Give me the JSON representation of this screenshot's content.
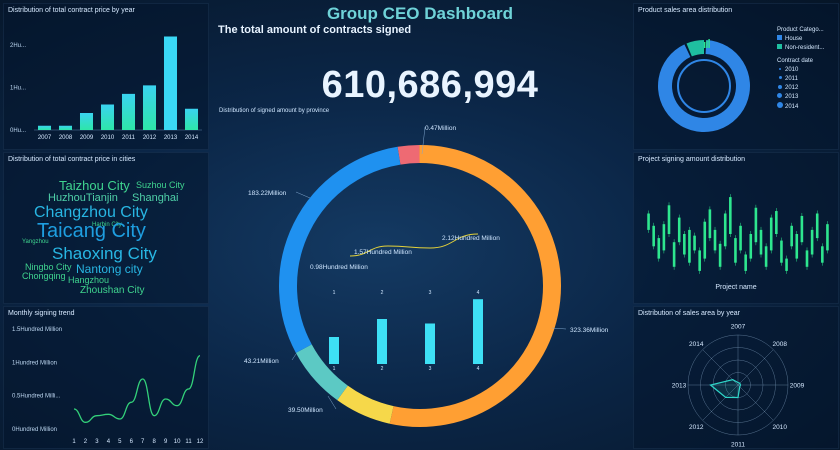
{
  "header": {
    "title": "Group CEO Dashboard",
    "subtitle": "The total amount of contracts signed",
    "total": "610,686,994"
  },
  "panels": {
    "by_year": "Distribution of total contract price by year",
    "cities": "Distribution of total contract price in cities",
    "monthly": "Monthly signing trend",
    "province": "Distribution of signed amount by province",
    "area": "Product sales area distribution",
    "project": "Project signing amount distribution",
    "sales_year": "Distribution of sales area by year"
  },
  "word_cloud": [
    {
      "text": "Taizhou City",
      "color": "#3fd48f"
    },
    {
      "text": "Suzhou City",
      "color": "#3fd48f"
    },
    {
      "text": "HuzhouTianjin",
      "color": "#4fd0a8"
    },
    {
      "text": "Shanghai",
      "color": "#4fd0a8"
    },
    {
      "text": "Changzhou City",
      "color": "#28b6e3"
    },
    {
      "text": "Harbin City",
      "color": "#3fd48f"
    },
    {
      "text": "Taicang City",
      "color": "#1e9ee0"
    },
    {
      "text": "Yangzhou",
      "color": "#3fd48f"
    },
    {
      "text": "Shaoxing City",
      "color": "#28b6e3"
    },
    {
      "text": "Ningbo City",
      "color": "#3fd48f"
    },
    {
      "text": "Chongqing",
      "color": "#3fd48f"
    },
    {
      "text": "Nantong city",
      "color": "#28b6e3"
    },
    {
      "text": "Hangzhou",
      "color": "#3fd48f"
    },
    {
      "text": "Zhoushan City",
      "color": "#3fd48f"
    }
  ],
  "legend": {
    "category_title": "Product Catego...",
    "categories": [
      {
        "name": "House",
        "color": "#2f86e6"
      },
      {
        "name": "Non-resident...",
        "color": "#1fbfa0"
      }
    ],
    "date_title": "Contract date",
    "dates": [
      "2010",
      "2011",
      "2012",
      "2013",
      "2014"
    ]
  },
  "chart_data": [
    {
      "id": "by_year",
      "type": "bar",
      "title": "Distribution of total contract price by year",
      "categories": [
        "2007",
        "2008",
        "2009",
        "2010",
        "2011",
        "2012",
        "2013",
        "2014"
      ],
      "values": [
        0.1,
        0.1,
        0.4,
        0.6,
        0.85,
        1.05,
        2.2,
        0.5
      ],
      "y_ticks": [
        "2Hu...",
        "1Hu...",
        "0Hu..."
      ],
      "ylim": [
        0,
        2.4
      ]
    },
    {
      "id": "monthly",
      "type": "line",
      "title": "Monthly signing trend",
      "x": [
        "1",
        "2",
        "3",
        "4",
        "5",
        "6",
        "7",
        "8",
        "9",
        "10",
        "11",
        "12"
      ],
      "values": [
        0.3,
        0.1,
        0.2,
        0.22,
        0.15,
        0.4,
        0.75,
        0.2,
        0.45,
        0.35,
        0.6,
        1.1
      ],
      "y_ticks": [
        "1.5Hundred Million",
        "1Hundred Million",
        "0.5Hundred Milli...",
        "0Hundred Million"
      ],
      "ylim": [
        0,
        1.5
      ]
    },
    {
      "id": "province",
      "type": "pie",
      "title": "Distribution of signed amount by province",
      "slices": [
        {
          "label": "0.47Million",
          "value": 0.47,
          "color": "#ee6a73"
        },
        {
          "label": "323.36Million",
          "value": 323.36,
          "color": "#ff9f33"
        },
        {
          "label": "39.50Million",
          "value": 39.5,
          "color": "#f6d84a"
        },
        {
          "label": "43.21Million",
          "value": 43.21,
          "color": "#5cc9c4"
        },
        {
          "label": "183.22Million",
          "value": 183.22,
          "color": "#1f91f0"
        }
      ]
    },
    {
      "id": "province_inner_line",
      "type": "line",
      "labels": [
        "0.98Hundred Million",
        "1.57Hundred Million",
        "2.12Hundred Million"
      ],
      "values": [
        0.98,
        1.57,
        2.12
      ]
    },
    {
      "id": "province_inner_bars",
      "type": "bar",
      "categories": [
        "1",
        "2",
        "3",
        "4"
      ],
      "values": [
        0.3,
        0.5,
        0.45,
        0.72
      ],
      "ylim": [
        0,
        0.8
      ]
    },
    {
      "id": "sales_area",
      "type": "pie",
      "title": "Product sales area distribution",
      "slices": [
        {
          "label": "House",
          "value": 0.93,
          "color": "#2f86e6"
        },
        {
          "label": "Non-resident...",
          "value": 0.07,
          "color": "#1fbfa0"
        }
      ]
    },
    {
      "id": "project",
      "type": "bar",
      "title": "Project signing amount distribution",
      "xlabel": "Project name",
      "values": [
        [
          0.55,
          0.75
        ],
        [
          0.35,
          0.6
        ],
        [
          0.2,
          0.45
        ],
        [
          0.3,
          0.62
        ],
        [
          0.5,
          0.85
        ],
        [
          0.1,
          0.4
        ],
        [
          0.4,
          0.7
        ],
        [
          0.25,
          0.5
        ],
        [
          0.15,
          0.55
        ],
        [
          0.3,
          0.48
        ],
        [
          0.05,
          0.3
        ],
        [
          0.2,
          0.65
        ],
        [
          0.45,
          0.8
        ],
        [
          0.3,
          0.55
        ],
        [
          0.1,
          0.38
        ],
        [
          0.35,
          0.75
        ],
        [
          0.5,
          0.95
        ],
        [
          0.15,
          0.45
        ],
        [
          0.3,
          0.6
        ],
        [
          0.05,
          0.25
        ],
        [
          0.2,
          0.5
        ],
        [
          0.4,
          0.82
        ],
        [
          0.25,
          0.55
        ],
        [
          0.1,
          0.35
        ],
        [
          0.3,
          0.7
        ],
        [
          0.5,
          0.78
        ],
        [
          0.15,
          0.42
        ],
        [
          0.05,
          0.2
        ],
        [
          0.35,
          0.6
        ],
        [
          0.2,
          0.5
        ],
        [
          0.4,
          0.72
        ],
        [
          0.1,
          0.3
        ],
        [
          0.25,
          0.55
        ],
        [
          0.45,
          0.75
        ],
        [
          0.15,
          0.35
        ],
        [
          0.3,
          0.62
        ]
      ],
      "ylim": [
        0,
        1
      ]
    },
    {
      "id": "sales_year",
      "type": "radar",
      "title": "Distribution of sales area by year",
      "axes": [
        "2007",
        "2008",
        "2009",
        "2010",
        "2011",
        "2012",
        "2013",
        "2014"
      ],
      "values": [
        0.05,
        0.05,
        0.05,
        0.05,
        0.25,
        0.35,
        0.55,
        0.15
      ]
    }
  ]
}
